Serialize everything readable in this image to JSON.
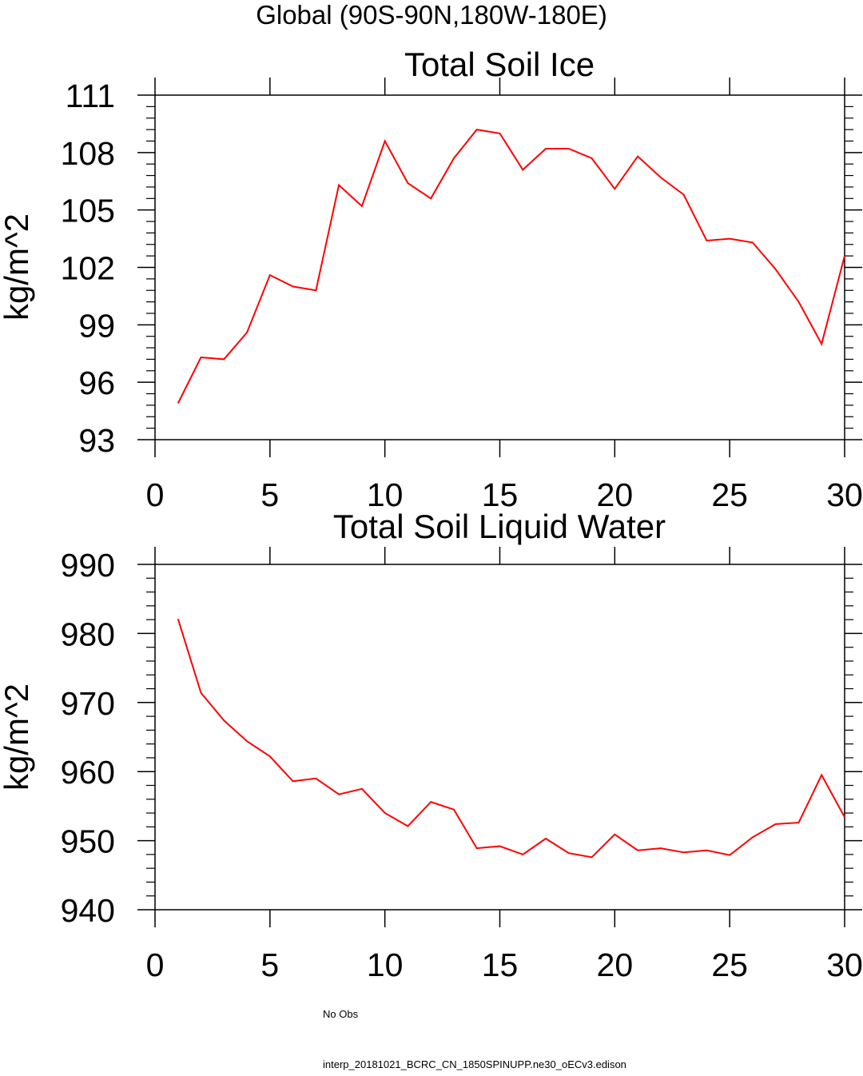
{
  "page": {
    "title": "Global (90S-90N,180W-180E)"
  },
  "chart_data": [
    {
      "type": "line",
      "title": "Total Soil Ice",
      "ylabel": "kg/m^2",
      "xlabel": "",
      "xlim": [
        0,
        30
      ],
      "ylim": [
        93,
        111
      ],
      "xticks": [
        0,
        5,
        10,
        15,
        20,
        25,
        30
      ],
      "yticks": [
        93,
        96,
        99,
        102,
        105,
        108,
        111
      ],
      "grid": false,
      "series": [
        {
          "color": "#ff0000",
          "x": [
            1,
            2,
            3,
            4,
            5,
            6,
            7,
            8,
            9,
            10,
            11,
            12,
            13,
            14,
            15,
            16,
            17,
            18,
            19,
            20,
            21,
            22,
            23,
            24,
            25,
            26,
            27,
            28,
            29,
            30
          ],
          "values": [
            94.9,
            97.3,
            97.2,
            98.6,
            101.6,
            101.0,
            100.8,
            106.3,
            105.2,
            108.6,
            106.4,
            105.6,
            107.7,
            109.2,
            109.0,
            107.1,
            108.2,
            108.2,
            107.7,
            106.1,
            107.8,
            106.7,
            105.8,
            103.4,
            103.5,
            103.3,
            101.9,
            100.2,
            98.0,
            102.6
          ]
        }
      ]
    },
    {
      "type": "line",
      "title": "Total Soil Liquid Water",
      "ylabel": "kg/m^2",
      "xlabel": "",
      "xlim": [
        0,
        30
      ],
      "ylim": [
        940,
        990
      ],
      "xticks": [
        0,
        5,
        10,
        15,
        20,
        25,
        30
      ],
      "yticks": [
        940,
        950,
        960,
        970,
        980,
        990
      ],
      "grid": false,
      "series": [
        {
          "color": "#ff0000",
          "x": [
            1,
            2,
            3,
            4,
            5,
            6,
            7,
            8,
            9,
            10,
            11,
            12,
            13,
            14,
            15,
            16,
            17,
            18,
            19,
            20,
            21,
            22,
            23,
            24,
            25,
            26,
            27,
            28,
            29,
            30
          ],
          "values": [
            982.1,
            971.4,
            967.4,
            964.4,
            962.2,
            958.6,
            959.0,
            956.7,
            957.5,
            954.0,
            952.1,
            955.6,
            954.5,
            948.9,
            949.2,
            948.0,
            950.3,
            948.2,
            947.6,
            950.9,
            948.6,
            948.9,
            948.3,
            948.6,
            947.9,
            950.5,
            952.4,
            952.6,
            959.5,
            953.4
          ]
        }
      ]
    }
  ],
  "legend": {
    "items": [
      {
        "label": "No Obs",
        "color": "#000080",
        "style": "dashed"
      },
      {
        "label": "interp_20181021_BCRC_CN_1850SPINUPP.ne30_oECv3.edison",
        "color": "#ff0000",
        "style": "solid"
      }
    ]
  }
}
